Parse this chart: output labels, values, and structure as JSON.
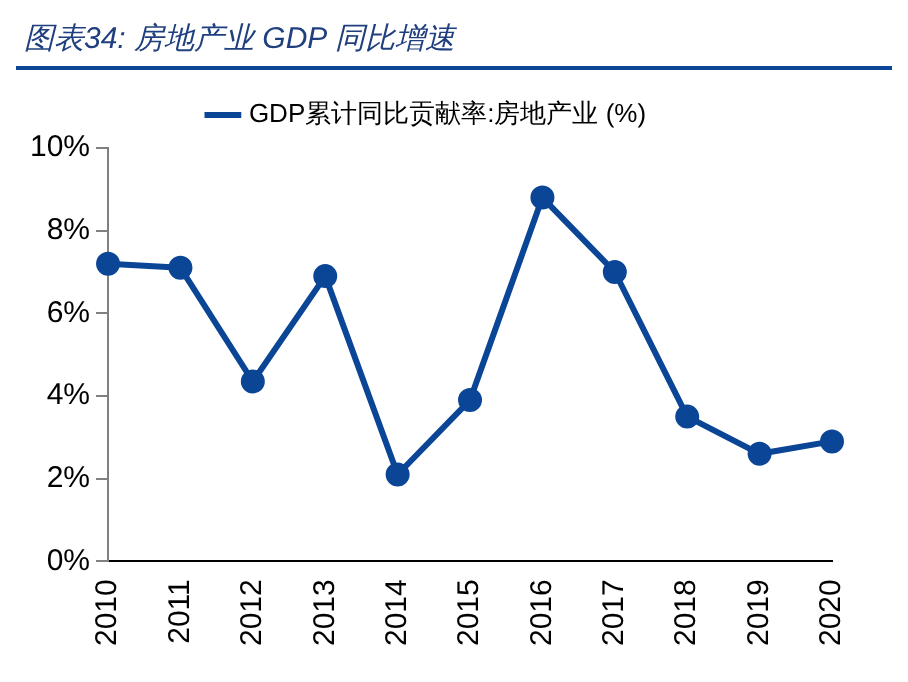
{
  "chart_data": {
    "type": "line",
    "title": "图表34: 房地产业 GDP 同比增速",
    "categories": [
      "2010",
      "2011",
      "2012",
      "2013",
      "2014",
      "2015",
      "2016",
      "2017",
      "2018",
      "2019",
      "2020"
    ],
    "series": [
      {
        "name": "GDP累计同比贡献率:房地产业 (%)",
        "color": "#0b4596",
        "values": [
          7.2,
          7.1,
          4.35,
          6.9,
          2.1,
          3.9,
          8.8,
          7.0,
          3.5,
          2.6,
          2.9
        ]
      }
    ],
    "ylim": [
      0,
      10
    ],
    "yticks": [
      {
        "value": 0,
        "label": "0%"
      },
      {
        "value": 2,
        "label": "2%"
      },
      {
        "value": 4,
        "label": "4%"
      },
      {
        "value": 6,
        "label": "6%"
      },
      {
        "value": 8,
        "label": "8%"
      },
      {
        "value": 10,
        "label": "10%"
      }
    ],
    "grid": false,
    "legend": "top",
    "marker": "circle",
    "line_style": "solid"
  }
}
